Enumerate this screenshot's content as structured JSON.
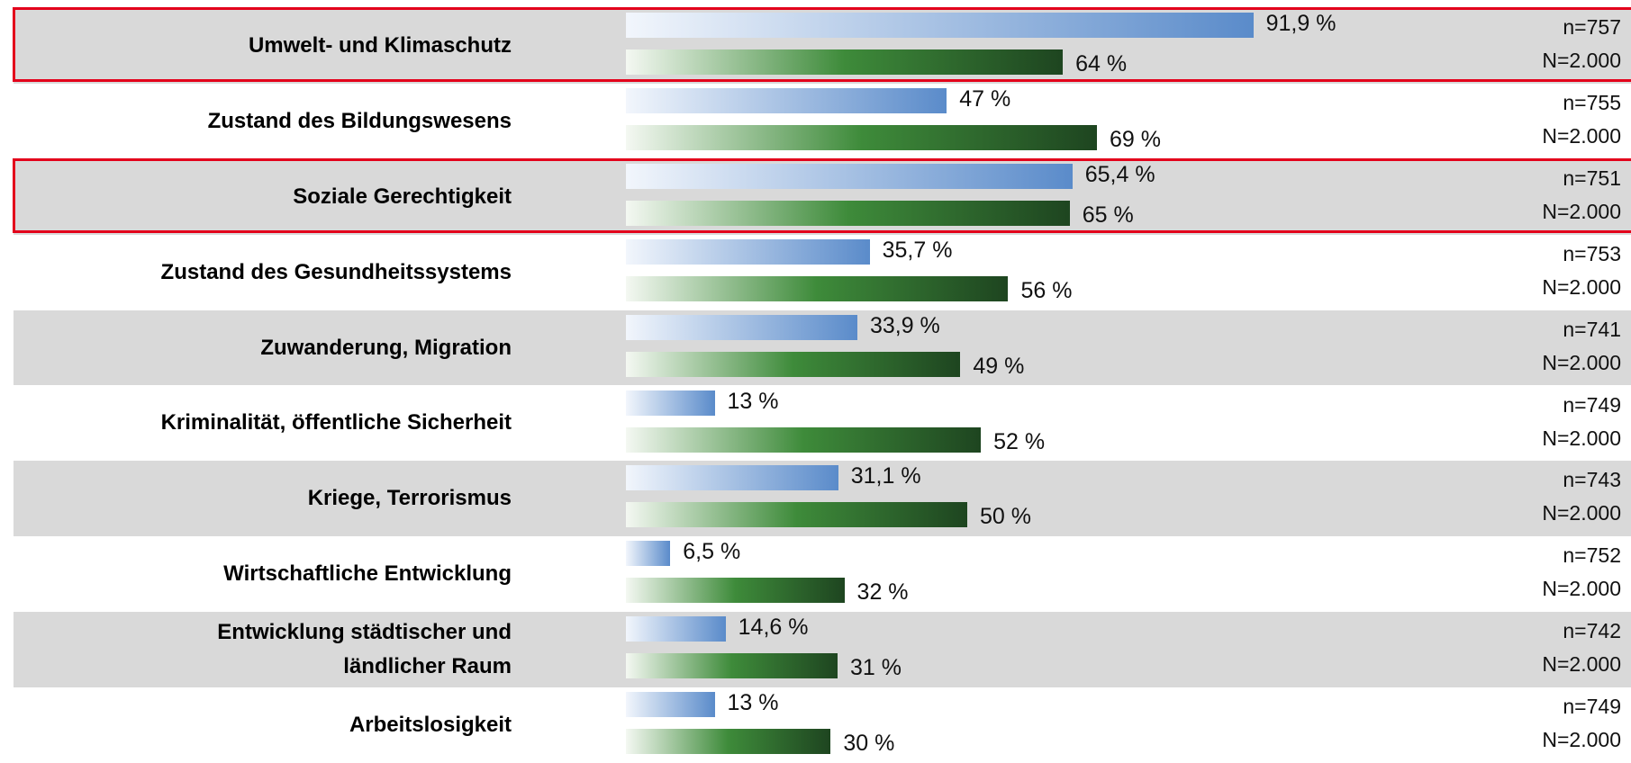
{
  "chart_data": {
    "type": "bar",
    "orientation": "horizontal",
    "categories": [
      "Umwelt- und Klimaschutz",
      "Zustand des Bildungswesens",
      "Soziale Gerechtigkeit",
      "Zustand des Gesundheitssystems",
      "Zuwanderung, Migration",
      "Kriminalität, öffentliche Sicherheit",
      "Kriege, Terrorismus",
      "Wirtschaftliche Entwicklung",
      "Entwicklung städtischer und\nländlicher Raum",
      "Arbeitslosigkeit"
    ],
    "series": [
      {
        "color": [
          "#f2f6fc",
          "#5a8bca"
        ],
        "values": [
          91.9,
          47,
          65.4,
          35.7,
          33.9,
          13,
          31.1,
          6.5,
          14.6,
          13
        ],
        "value_labels": [
          "91,9 %",
          "47 %",
          "65,4 %",
          "35,7 %",
          "33,9 %",
          "13 %",
          "31,1 %",
          "6,5 %",
          "14,6 %",
          "13 %"
        ]
      },
      {
        "color": [
          "#f4f8f2",
          "#3e8b3a",
          "#1e4520"
        ],
        "values": [
          64,
          69,
          65,
          56,
          49,
          52,
          50,
          32,
          31,
          30
        ],
        "value_labels": [
          "64 %",
          "69 %",
          "65 %",
          "56 %",
          "49 %",
          "52 %",
          "50 %",
          "32 %",
          "31 %",
          "30 %"
        ]
      }
    ],
    "sample_sizes": [
      {
        "n": "n=757",
        "N": "N=2.000"
      },
      {
        "n": "n=755",
        "N": "N=2.000"
      },
      {
        "n": "n=751",
        "N": "N=2.000"
      },
      {
        "n": "n=753",
        "N": "N=2.000"
      },
      {
        "n": "n=741",
        "N": "N=2.000"
      },
      {
        "n": "n=749",
        "N": "N=2.000"
      },
      {
        "n": "n=743",
        "N": "N=2.000"
      },
      {
        "n": "n=752",
        "N": "N=2.000"
      },
      {
        "n": "n=742",
        "N": "N=2.000"
      },
      {
        "n": "n=749",
        "N": "N=2.000"
      }
    ],
    "xlim": [
      0,
      100
    ],
    "row_shading": "#d9d9d9",
    "highlight_rows": [
      0,
      2
    ],
    "highlight_color": "#e3001b"
  }
}
